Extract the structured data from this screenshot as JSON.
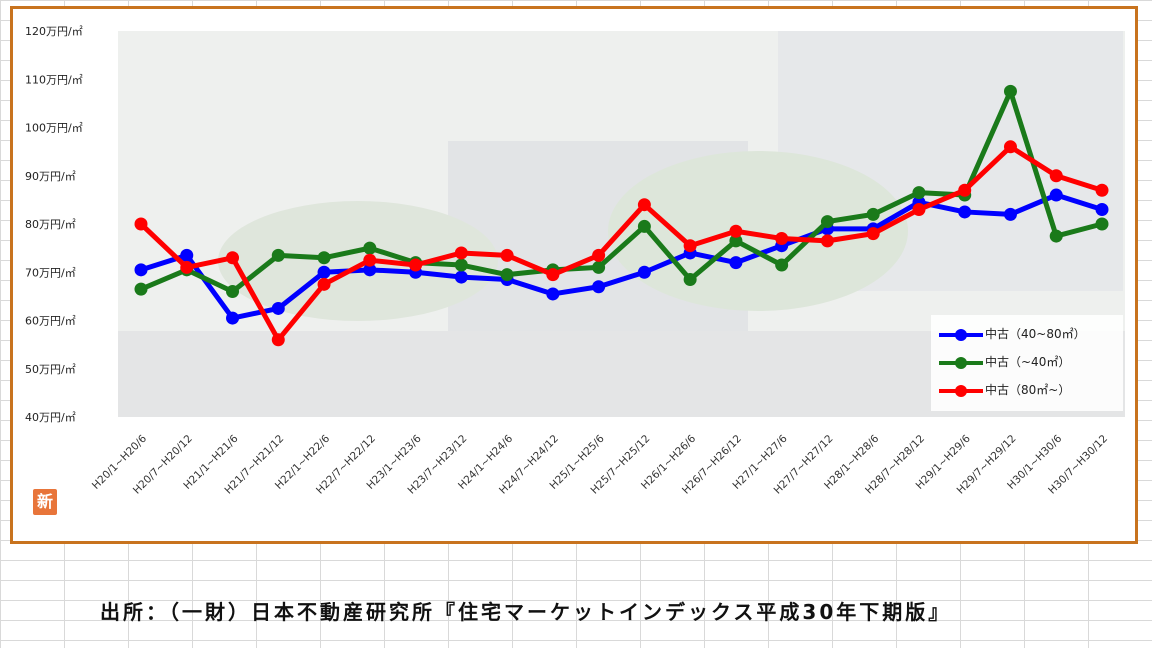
{
  "source_note": "出所：（一財）日本不動産研究所『住宅マーケットインデックス平成30年下期版』",
  "badge_text": "新",
  "colors": {
    "frame": "#c8731e",
    "series": [
      "#0000ff",
      "#1a7a1a",
      "#ff0000"
    ]
  },
  "chart_data": {
    "type": "line",
    "title": "",
    "xlabel": "",
    "ylabel": "",
    "y_tick_labels": [
      "40万円/㎡",
      "50万円/㎡",
      "60万円/㎡",
      "70万円/㎡",
      "80万円/㎡",
      "90万円/㎡",
      "100万円/㎡",
      "110万円/㎡",
      "120万円/㎡"
    ],
    "ylim": [
      40,
      120
    ],
    "legend_position": "bottom-right",
    "grid": false,
    "categories": [
      "H20/1~H20/6",
      "H20/7~H20/12",
      "H21/1~H21/6",
      "H21/7~H21/12",
      "H22/1~H22/6",
      "H22/7~H22/12",
      "H23/1~H23/6",
      "H23/7~H23/12",
      "H24/1~H24/6",
      "H24/7~H24/12",
      "H25/1~H25/6",
      "H25/7~H25/12",
      "H26/1~H26/6",
      "H26/7~H26/12",
      "H27/1~H27/6",
      "H27/7~H27/12",
      "H28/1~H28/6",
      "H28/7~H28/12",
      "H29/1~H29/6",
      "H29/7~H29/12",
      "H30/1~H30/6",
      "H30/7~H30/12"
    ],
    "series": [
      {
        "name": "中古（40~80㎡）",
        "values": [
          70.5,
          73.5,
          60.5,
          62.5,
          70,
          70.5,
          70,
          69,
          68.5,
          65.5,
          67,
          70,
          74,
          72,
          75.5,
          79,
          79,
          84.5,
          82.5,
          82,
          86,
          83
        ]
      },
      {
        "name": "中古（~40㎡）",
        "values": [
          66.5,
          70.5,
          66,
          73.5,
          73,
          75,
          72,
          71.5,
          69.5,
          70.5,
          71,
          79.5,
          68.5,
          76.5,
          71.5,
          80.5,
          82,
          86.5,
          86,
          107.5,
          77.5,
          80
        ]
      },
      {
        "name": "中古（80㎡~）",
        "values": [
          80,
          71,
          73,
          56,
          67.5,
          72.5,
          71.5,
          74,
          73.5,
          69.5,
          73.5,
          84,
          75.5,
          78.5,
          77,
          76.5,
          78,
          83,
          87,
          96,
          90,
          87
        ]
      }
    ]
  }
}
